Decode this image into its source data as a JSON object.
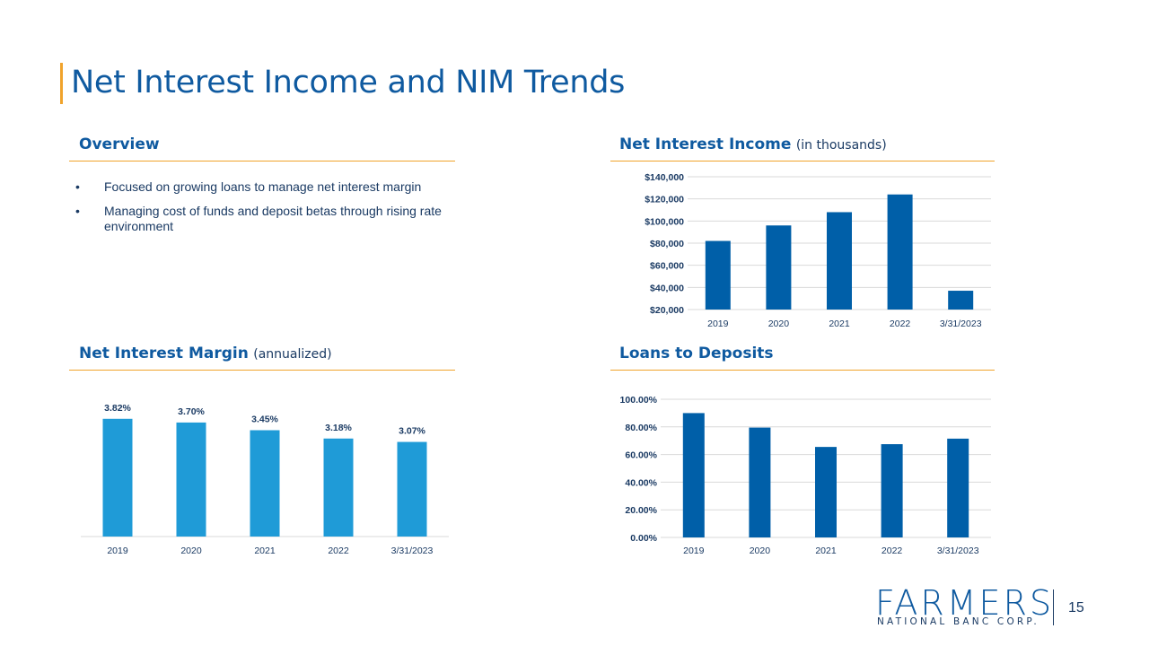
{
  "title": "Net Interest Income and NIM Trends",
  "overview": {
    "heading": "Overview",
    "bullets": [
      "Focused on growing loans to manage net interest margin",
      "Managing cost of funds and deposit betas through rising rate environment"
    ]
  },
  "sections": {
    "nii": {
      "heading": "Net Interest Income",
      "sub": "(in thousands)"
    },
    "nim": {
      "heading": "Net Interest Margin",
      "sub": "(annualized)"
    },
    "ltd": {
      "heading": "Loans to Deposits",
      "sub": ""
    }
  },
  "colors": {
    "accent": "#f0a32b",
    "title": "#0f5aa0",
    "dark_bar": "#005fa8",
    "light_bar": "#1f9bd7",
    "grid": "#d9d9d9"
  },
  "logo": {
    "word": "FARMERS",
    "sub": "NATIONAL BANC CORP."
  },
  "page_number": "15",
  "chart_data": [
    {
      "id": "nii",
      "type": "bar",
      "title": "Net Interest Income (in thousands)",
      "categories": [
        "2019",
        "2020",
        "2021",
        "2022",
        "3/31/2023"
      ],
      "values": [
        82000,
        96000,
        108000,
        124000,
        37000
      ],
      "ylim": [
        20000,
        140000
      ],
      "yticks": [
        20000,
        40000,
        60000,
        80000,
        100000,
        120000,
        140000
      ],
      "ytick_labels": [
        "$20,000",
        "$40,000",
        "$60,000",
        "$80,000",
        "$100,000",
        "$120,000",
        "$140,000"
      ],
      "grid": true,
      "show_data_labels": false
    },
    {
      "id": "nim",
      "type": "bar",
      "title": "Net Interest Margin (annualized)",
      "categories": [
        "2019",
        "2020",
        "2021",
        "2022",
        "3/31/2023"
      ],
      "values": [
        3.82,
        3.7,
        3.45,
        3.18,
        3.07
      ],
      "data_labels": [
        "3.82%",
        "3.70%",
        "3.45%",
        "3.18%",
        "3.07%"
      ],
      "ylim": [
        0,
        4.6
      ],
      "grid": false,
      "show_data_labels": true
    },
    {
      "id": "ltd",
      "type": "bar",
      "title": "Loans to Deposits",
      "categories": [
        "2019",
        "2020",
        "2021",
        "2022",
        "3/31/2023"
      ],
      "values": [
        90,
        79.5,
        65.5,
        67.5,
        71.5
      ],
      "ylim": [
        0,
        100
      ],
      "yticks": [
        0,
        20,
        40,
        60,
        80,
        100
      ],
      "ytick_labels": [
        "0.00%",
        "20.00%",
        "40.00%",
        "60.00%",
        "80.00%",
        "100.00%"
      ],
      "grid": true,
      "show_data_labels": false
    }
  ]
}
